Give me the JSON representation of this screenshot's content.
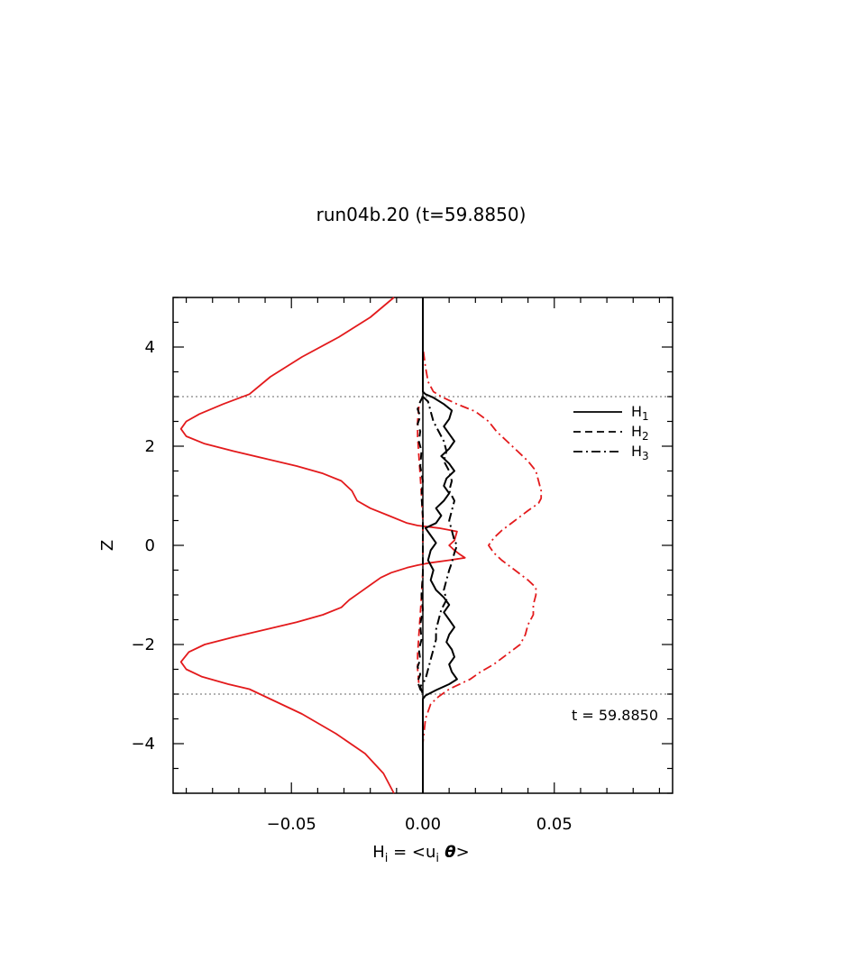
{
  "chart_data": {
    "type": "line",
    "title": "run04b.20 (t=59.8850)",
    "xlabel": "H",
    "xlabel_sub": "i",
    "xlabel_eq": " = <u",
    "xlabel_sub2": "i",
    "xlabel_theta": " θ",
    "xlabel_close": ">",
    "ylabel": "Z",
    "xlim": [
      -0.095,
      0.095
    ],
    "ylim": [
      -5,
      5
    ],
    "xticks": [
      -0.05,
      0.0,
      0.05
    ],
    "xtick_labels": [
      "−0.05",
      "0.00",
      "0.05"
    ],
    "yticks": [
      -4,
      -2,
      0,
      2,
      4
    ],
    "ytick_labels": [
      "−4",
      "−2",
      "0",
      "2",
      "4"
    ],
    "grid": false,
    "legend_position": "top-right",
    "reference_lines": [
      {
        "orientation": "horizontal",
        "y": 3,
        "style": "dotted",
        "color": "#999999"
      },
      {
        "orientation": "horizontal",
        "y": -3,
        "style": "dotted",
        "color": "#999999"
      }
    ],
    "annotation": "t = 59.8850",
    "series": [
      {
        "name": "H1",
        "legend_main": "H",
        "legend_sub": "1",
        "color": "#000000",
        "dash": "solid",
        "points": [
          [
            0,
            5
          ],
          [
            0,
            3.1
          ],
          [
            0.001,
            3.05
          ],
          [
            0.004,
            2.98
          ],
          [
            0.008,
            2.85
          ],
          [
            0.011,
            2.72
          ],
          [
            0.01,
            2.55
          ],
          [
            0.008,
            2.4
          ],
          [
            0.01,
            2.25
          ],
          [
            0.012,
            2.1
          ],
          [
            0.01,
            1.95
          ],
          [
            0.007,
            1.8
          ],
          [
            0.01,
            1.65
          ],
          [
            0.012,
            1.5
          ],
          [
            0.009,
            1.35
          ],
          [
            0.008,
            1.2
          ],
          [
            0.01,
            1.05
          ],
          [
            0.008,
            0.9
          ],
          [
            0.005,
            0.75
          ],
          [
            0.007,
            0.6
          ],
          [
            0.005,
            0.45
          ],
          [
            0.001,
            0.35
          ],
          [
            0.003,
            0.2
          ],
          [
            0.005,
            0.05
          ],
          [
            0.003,
            -0.1
          ],
          [
            0.002,
            -0.3
          ],
          [
            0.004,
            -0.5
          ],
          [
            0.003,
            -0.7
          ],
          [
            0.005,
            -0.9
          ],
          [
            0.008,
            -1.05
          ],
          [
            0.01,
            -1.2
          ],
          [
            0.008,
            -1.35
          ],
          [
            0.01,
            -1.5
          ],
          [
            0.012,
            -1.65
          ],
          [
            0.01,
            -1.8
          ],
          [
            0.009,
            -1.95
          ],
          [
            0.011,
            -2.1
          ],
          [
            0.012,
            -2.25
          ],
          [
            0.01,
            -2.4
          ],
          [
            0.011,
            -2.55
          ],
          [
            0.013,
            -2.7
          ],
          [
            0.01,
            -2.8
          ],
          [
            0.005,
            -2.92
          ],
          [
            0.001,
            -3.03
          ],
          [
            0,
            -3.1
          ],
          [
            0,
            -5
          ]
        ]
      },
      {
        "name": "H2",
        "legend_main": "H",
        "legend_sub": "2",
        "color": "#000000",
        "dash": "dashed",
        "points": [
          [
            0,
            3
          ],
          [
            -0.001,
            2.9
          ],
          [
            -0.002,
            2.75
          ],
          [
            -0.001,
            2.6
          ],
          [
            -0.002,
            2.45
          ],
          [
            -0.001,
            2.3
          ],
          [
            -0.0015,
            2.1
          ],
          [
            -0.0005,
            1.9
          ],
          [
            -0.001,
            1.6
          ],
          [
            0,
            1.3
          ],
          [
            -0.0005,
            1.0
          ],
          [
            0,
            0.6
          ],
          [
            0,
            0
          ],
          [
            0,
            -0.6
          ],
          [
            -0.0005,
            -1.0
          ],
          [
            0,
            -1.3
          ],
          [
            -0.001,
            -1.6
          ],
          [
            -0.0005,
            -1.9
          ],
          [
            -0.0015,
            -2.1
          ],
          [
            -0.001,
            -2.3
          ],
          [
            -0.002,
            -2.45
          ],
          [
            -0.001,
            -2.6
          ],
          [
            -0.002,
            -2.75
          ],
          [
            -0.001,
            -2.9
          ],
          [
            0,
            -3
          ]
        ]
      },
      {
        "name": "H3",
        "legend_main": "H",
        "legend_sub": "3",
        "color": "#000000",
        "dash": "dashdot",
        "points": [
          [
            0,
            3.0
          ],
          [
            0.002,
            2.9
          ],
          [
            0.003,
            2.7
          ],
          [
            0.004,
            2.5
          ],
          [
            0.006,
            2.3
          ],
          [
            0.008,
            2.1
          ],
          [
            0.009,
            1.9
          ],
          [
            0.008,
            1.7
          ],
          [
            0.01,
            1.5
          ],
          [
            0.011,
            1.3
          ],
          [
            0.01,
            1.1
          ],
          [
            0.012,
            0.9
          ],
          [
            0.011,
            0.7
          ],
          [
            0.01,
            0.5
          ],
          [
            0.011,
            0.3
          ],
          [
            0.012,
            0.1
          ],
          [
            0.013,
            0
          ],
          [
            0.012,
            -0.15
          ],
          [
            0.011,
            -0.35
          ],
          [
            0.01,
            -0.5
          ],
          [
            0.009,
            -0.7
          ],
          [
            0.008,
            -0.9
          ],
          [
            0.009,
            -1.1
          ],
          [
            0.007,
            -1.3
          ],
          [
            0.006,
            -1.5
          ],
          [
            0.005,
            -1.7
          ],
          [
            0.005,
            -1.9
          ],
          [
            0.004,
            -2.1
          ],
          [
            0.003,
            -2.3
          ],
          [
            0.002,
            -2.5
          ],
          [
            0.001,
            -2.7
          ],
          [
            -0.001,
            -2.85
          ],
          [
            0,
            -3.0
          ]
        ]
      },
      {
        "name": "",
        "color": "#e31a1c",
        "dash": "solid",
        "points": [
          [
            -0.011,
            5
          ],
          [
            -0.02,
            4.6
          ],
          [
            -0.032,
            4.2
          ],
          [
            -0.046,
            3.8
          ],
          [
            -0.058,
            3.4
          ],
          [
            -0.066,
            3.05
          ],
          [
            -0.076,
            2.85
          ],
          [
            -0.085,
            2.65
          ],
          [
            -0.09,
            2.5
          ],
          [
            -0.092,
            2.35
          ],
          [
            -0.09,
            2.2
          ],
          [
            -0.083,
            2.05
          ],
          [
            -0.072,
            1.9
          ],
          [
            -0.06,
            1.75
          ],
          [
            -0.048,
            1.6
          ],
          [
            -0.038,
            1.45
          ],
          [
            -0.031,
            1.3
          ],
          [
            -0.027,
            1.1
          ],
          [
            -0.025,
            0.9
          ],
          [
            -0.02,
            0.75
          ],
          [
            -0.013,
            0.6
          ],
          [
            -0.006,
            0.45
          ],
          [
            -0.002,
            0.4
          ],
          [
            0.006,
            0.35
          ],
          [
            0.011,
            0.3
          ],
          [
            0.013,
            0.28
          ],
          [
            0.012,
            0.1
          ],
          [
            0.01,
            0
          ],
          [
            0.012,
            -0.1
          ],
          [
            0.014,
            -0.18
          ],
          [
            0.016,
            -0.25
          ],
          [
            0.01,
            -0.3
          ],
          [
            0.003,
            -0.35
          ],
          [
            -0.002,
            -0.4
          ],
          [
            -0.006,
            -0.45
          ],
          [
            -0.012,
            -0.55
          ],
          [
            -0.016,
            -0.65
          ],
          [
            -0.02,
            -0.8
          ],
          [
            -0.024,
            -0.95
          ],
          [
            -0.028,
            -1.1
          ],
          [
            -0.031,
            -1.25
          ],
          [
            -0.038,
            -1.4
          ],
          [
            -0.048,
            -1.55
          ],
          [
            -0.06,
            -1.7
          ],
          [
            -0.072,
            -1.85
          ],
          [
            -0.083,
            -2.0
          ],
          [
            -0.089,
            -2.15
          ],
          [
            -0.092,
            -2.35
          ],
          [
            -0.09,
            -2.5
          ],
          [
            -0.084,
            -2.65
          ],
          [
            -0.074,
            -2.8
          ],
          [
            -0.066,
            -2.9
          ],
          [
            -0.058,
            -3.1
          ],
          [
            -0.046,
            -3.4
          ],
          [
            -0.033,
            -3.8
          ],
          [
            -0.022,
            -4.2
          ],
          [
            -0.015,
            -4.6
          ],
          [
            -0.011,
            -5
          ]
        ]
      },
      {
        "name": "",
        "color": "#e31a1c",
        "dash": "dashdot",
        "points": [
          [
            0,
            5
          ],
          [
            0,
            4.0
          ],
          [
            0.001,
            3.6
          ],
          [
            0.002,
            3.3
          ],
          [
            0.004,
            3.1
          ],
          [
            0.007,
            3.0
          ],
          [
            0.013,
            2.85
          ],
          [
            0.02,
            2.7
          ],
          [
            0.025,
            2.5
          ],
          [
            0.028,
            2.3
          ],
          [
            0.032,
            2.1
          ],
          [
            0.036,
            1.9
          ],
          [
            0.04,
            1.7
          ],
          [
            0.043,
            1.5
          ],
          [
            0.044,
            1.3
          ],
          [
            0.045,
            1.1
          ],
          [
            0.045,
            0.95
          ],
          [
            0.044,
            0.85
          ],
          [
            0.04,
            0.7
          ],
          [
            0.035,
            0.5
          ],
          [
            0.03,
            0.3
          ],
          [
            0.027,
            0.15
          ],
          [
            0.025,
            0
          ],
          [
            0.027,
            -0.15
          ],
          [
            0.03,
            -0.3
          ],
          [
            0.035,
            -0.5
          ],
          [
            0.04,
            -0.7
          ],
          [
            0.043,
            -0.85
          ],
          [
            0.043,
            -1.0
          ],
          [
            0.042,
            -1.2
          ],
          [
            0.042,
            -1.4
          ],
          [
            0.04,
            -1.6
          ],
          [
            0.039,
            -1.8
          ],
          [
            0.037,
            -2.0
          ],
          [
            0.032,
            -2.2
          ],
          [
            0.027,
            -2.4
          ],
          [
            0.022,
            -2.55
          ],
          [
            0.018,
            -2.7
          ],
          [
            0.014,
            -2.8
          ],
          [
            0.01,
            -2.9
          ],
          [
            0.006,
            -3.05
          ],
          [
            0.003,
            -3.2
          ],
          [
            0.001,
            -3.5
          ],
          [
            0,
            -4.0
          ],
          [
            0,
            -5
          ]
        ]
      },
      {
        "name": "",
        "color": "#e31a1c",
        "dash": "dashed",
        "points": [
          [
            -0.0015,
            2.8
          ],
          [
            -0.002,
            2.5
          ],
          [
            -0.002,
            2.2
          ],
          [
            -0.0015,
            1.8
          ],
          [
            -0.001,
            1.4
          ],
          [
            -0.0005,
            1.0
          ],
          [
            0,
            0.5
          ],
          [
            0,
            0
          ],
          [
            0,
            -0.5
          ],
          [
            -0.0005,
            -1.0
          ],
          [
            -0.001,
            -1.4
          ],
          [
            -0.0015,
            -1.8
          ],
          [
            -0.002,
            -2.2
          ],
          [
            -0.002,
            -2.5
          ],
          [
            -0.0015,
            -2.8
          ]
        ]
      }
    ]
  }
}
